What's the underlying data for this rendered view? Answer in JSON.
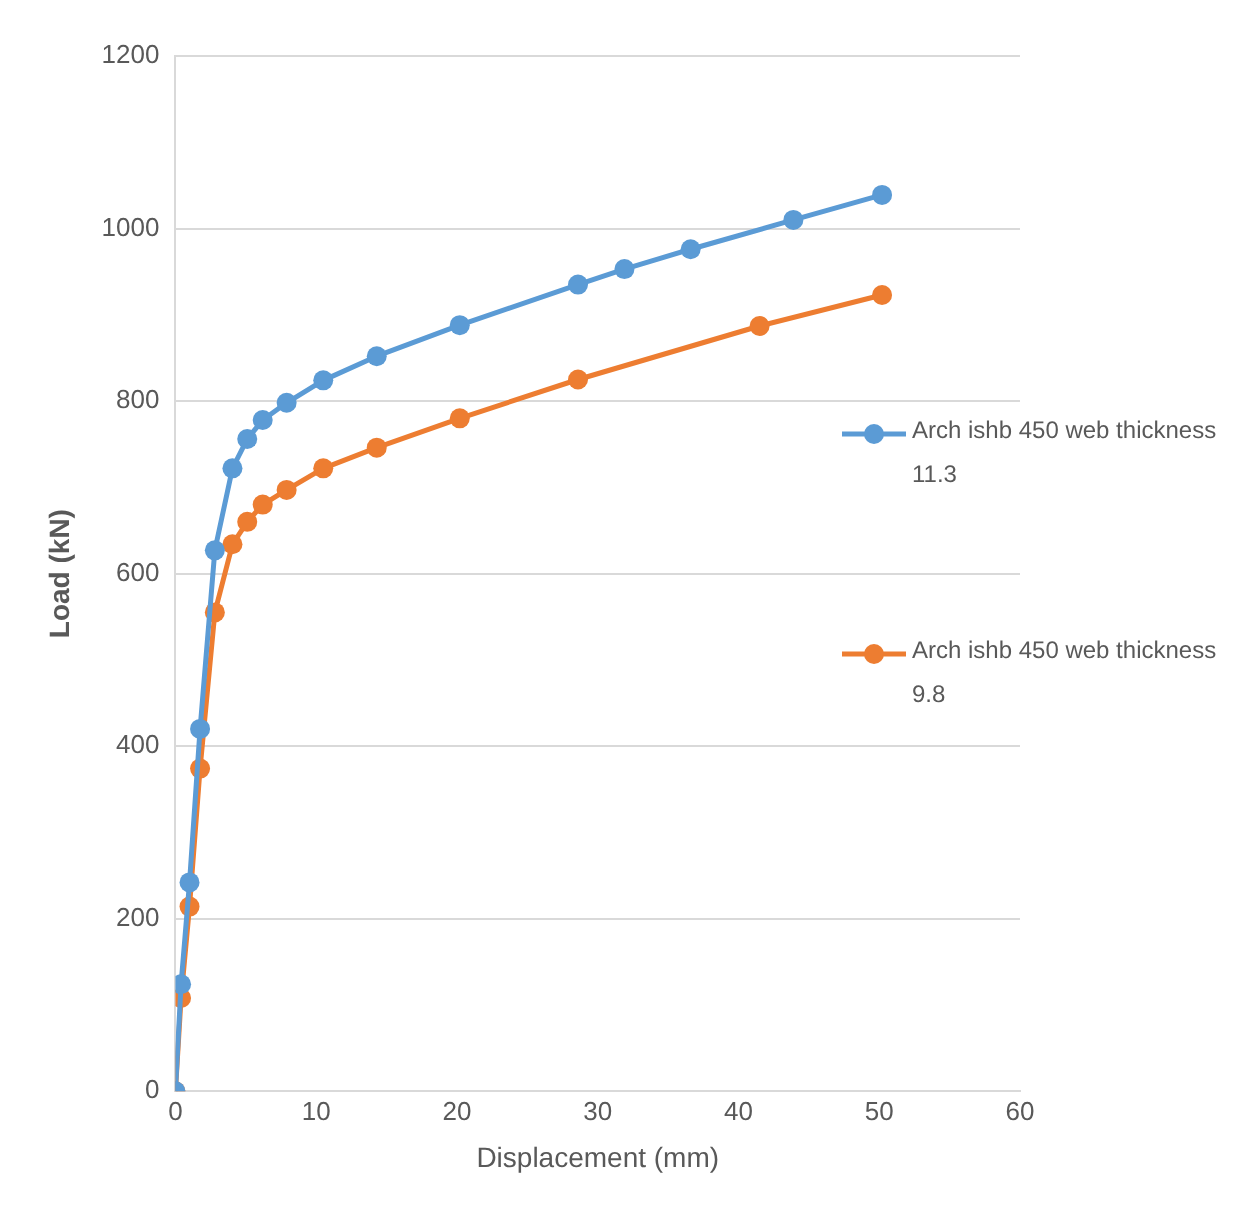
{
  "chart_data": {
    "type": "line",
    "xlabel": "Displacement (mm)",
    "ylabel": "Load (kN)",
    "xlim": [
      0,
      60
    ],
    "xticks": [
      0,
      10,
      20,
      30,
      40,
      50,
      60
    ],
    "ylim": [
      0,
      1200
    ],
    "yticks": [
      0,
      200,
      400,
      600,
      800,
      1000,
      1200
    ],
    "grid": "y",
    "legend": "right",
    "marker": "circle",
    "line_style": "solid",
    "series": [
      {
        "name": "Arch ishb 450 web thickness 11.3",
        "color": "#5b9bd5",
        "x": [
          0,
          0.4,
          1,
          1.75,
          2.8,
          4.05,
          5.1,
          6.2,
          7.9,
          10.5,
          14.3,
          20.2,
          28.6,
          31.9,
          36.6,
          43.9,
          50.2
        ],
        "values": [
          0,
          124,
          242,
          420,
          627,
          722,
          756,
          778,
          798,
          824,
          852,
          888,
          935,
          953,
          976,
          1010,
          1039
        ]
      },
      {
        "name": "Arch ishb 450 web thickness 9.8",
        "color": "#ed7d31",
        "x": [
          0,
          0.4,
          1,
          1.75,
          2.8,
          4.05,
          5.1,
          6.2,
          7.9,
          10.5,
          14.3,
          20.2,
          28.6,
          41.5,
          50.2
        ],
        "values": [
          0,
          108,
          214,
          374,
          555,
          634,
          660,
          680,
          697,
          722,
          746,
          780,
          825,
          887,
          923
        ]
      }
    ]
  }
}
